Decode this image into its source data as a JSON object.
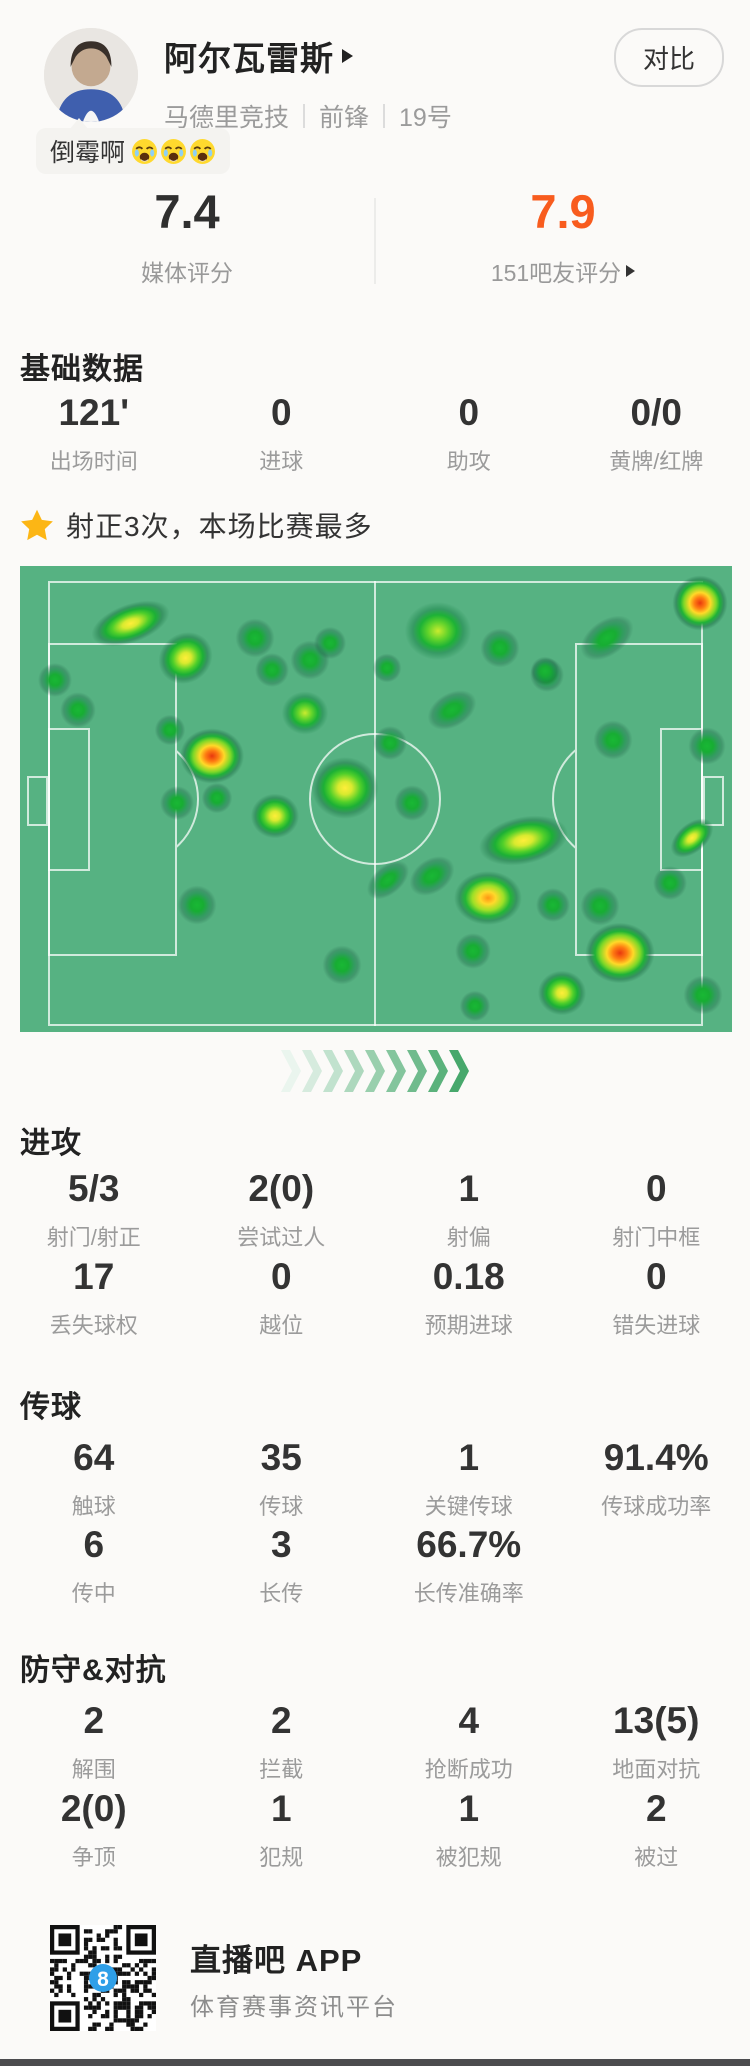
{
  "header": {
    "player_name": "阿尔瓦雷斯",
    "team": "马德里竞技",
    "position": "前锋",
    "number": "19号",
    "compare_label": "对比",
    "tag_text": "倒霉啊",
    "tag_emoji": "crying-face",
    "tag_emoji_count": 3
  },
  "ratings": {
    "media_score": "7.4",
    "media_label": "媒体评分",
    "fan_score": "7.9",
    "fan_label": "151吧友评分",
    "fan_color": "#f85c1e"
  },
  "highlight": {
    "text": "射正3次，本场比赛最多",
    "star_color": "#fcb615"
  },
  "sections": [
    {
      "key": "basic",
      "title": "基础数据",
      "rows": [
        [
          {
            "v": "121'",
            "l": "出场时间"
          },
          {
            "v": "0",
            "l": "进球"
          },
          {
            "v": "0",
            "l": "助攻"
          },
          {
            "v": "0/0",
            "l": "黄牌/红牌"
          }
        ]
      ]
    },
    {
      "key": "attack",
      "title": "进攻",
      "rows": [
        [
          {
            "v": "5/3",
            "l": "射门/射正"
          },
          {
            "v": "2(0)",
            "l": "尝试过人"
          },
          {
            "v": "1",
            "l": "射偏"
          },
          {
            "v": "0",
            "l": "射门中框"
          }
        ],
        [
          {
            "v": "17",
            "l": "丢失球权"
          },
          {
            "v": "0",
            "l": "越位"
          },
          {
            "v": "0.18",
            "l": "预期进球"
          },
          {
            "v": "0",
            "l": "错失进球"
          }
        ]
      ]
    },
    {
      "key": "passing",
      "title": "传球",
      "rows": [
        [
          {
            "v": "64",
            "l": "触球"
          },
          {
            "v": "35",
            "l": "传球"
          },
          {
            "v": "1",
            "l": "关键传球"
          },
          {
            "v": "91.4%",
            "l": "传球成功率"
          }
        ],
        [
          {
            "v": "6",
            "l": "传中"
          },
          {
            "v": "3",
            "l": "长传"
          },
          {
            "v": "66.7%",
            "l": "长传准确率"
          }
        ]
      ]
    },
    {
      "key": "defense",
      "title": "防守&对抗",
      "rows": [
        [
          {
            "v": "2",
            "l": "解围"
          },
          {
            "v": "2",
            "l": "拦截"
          },
          {
            "v": "4",
            "l": "抢断成功"
          },
          {
            "v": "13(5)",
            "l": "地面对抗"
          }
        ],
        [
          {
            "v": "2(0)",
            "l": "争顶"
          },
          {
            "v": "1",
            "l": "犯规"
          },
          {
            "v": "1",
            "l": "被犯规"
          },
          {
            "v": "2",
            "l": "被过"
          }
        ]
      ]
    }
  ],
  "heatmap": {
    "pitch_color": "#56b282",
    "line_color": "rgba(255,255,255,0.72)",
    "blobs": [
      [
        110,
        57,
        95,
        45,
        -20,
        "y"
      ],
      [
        35,
        114,
        40,
        40,
        0,
        "g"
      ],
      [
        58,
        144,
        42,
        42,
        0,
        "g"
      ],
      [
        165,
        92,
        65,
        58,
        -35,
        "y"
      ],
      [
        235,
        72,
        46,
        46,
        0,
        "g"
      ],
      [
        252,
        104,
        40,
        40,
        0,
        "g"
      ],
      [
        290,
        94,
        46,
        46,
        0,
        "g"
      ],
      [
        310,
        77,
        38,
        38,
        0,
        "g"
      ],
      [
        285,
        147,
        56,
        52,
        0,
        "gy"
      ],
      [
        150,
        164,
        36,
        36,
        0,
        "g"
      ],
      [
        192,
        190,
        72,
        62,
        0,
        "r"
      ],
      [
        255,
        250,
        56,
        52,
        0,
        "y"
      ],
      [
        325,
        222,
        78,
        72,
        0,
        "y"
      ],
      [
        370,
        177,
        40,
        40,
        0,
        "g"
      ],
      [
        392,
        237,
        42,
        42,
        0,
        "g"
      ],
      [
        418,
        65,
        80,
        70,
        0,
        "gy"
      ],
      [
        367,
        102,
        34,
        34,
        0,
        "g"
      ],
      [
        480,
        82,
        46,
        46,
        0,
        "g"
      ],
      [
        527,
        109,
        40,
        40,
        0,
        "g"
      ],
      [
        587,
        72,
        70,
        42,
        -35,
        "g"
      ],
      [
        593,
        174,
        46,
        46,
        0,
        "g"
      ],
      [
        687,
        180,
        44,
        44,
        0,
        "g"
      ],
      [
        680,
        37,
        62,
        62,
        0,
        "r"
      ],
      [
        432,
        144,
        62,
        40,
        -30,
        "g"
      ],
      [
        525,
        105,
        34,
        34,
        0,
        "g"
      ],
      [
        157,
        237,
        40,
        40,
        0,
        "g"
      ],
      [
        197,
        232,
        36,
        36,
        0,
        "g"
      ],
      [
        177,
        339,
        46,
        46,
        0,
        "g"
      ],
      [
        322,
        399,
        46,
        46,
        0,
        "g"
      ],
      [
        368,
        314,
        58,
        34,
        -40,
        "g"
      ],
      [
        412,
        310,
        58,
        40,
        -35,
        "g"
      ],
      [
        503,
        274,
        105,
        55,
        -12,
        "y"
      ],
      [
        468,
        332,
        78,
        62,
        0,
        "o"
      ],
      [
        533,
        339,
        40,
        40,
        0,
        "g"
      ],
      [
        580,
        340,
        46,
        46,
        0,
        "g"
      ],
      [
        453,
        385,
        42,
        42,
        0,
        "g"
      ],
      [
        600,
        387,
        78,
        68,
        0,
        "r"
      ],
      [
        542,
        427,
        56,
        52,
        0,
        "y"
      ],
      [
        672,
        272,
        58,
        34,
        -40,
        "y"
      ],
      [
        650,
        317,
        40,
        40,
        0,
        "g"
      ],
      [
        683,
        429,
        46,
        46,
        0,
        "g"
      ],
      [
        455,
        440,
        36,
        36,
        0,
        "g"
      ]
    ]
  },
  "chevrons": {
    "count": 9,
    "start_color": "#eaf5ee",
    "end_color": "#47a86c"
  },
  "footer": {
    "app_name": "直播吧 APP",
    "slogan": "体育赛事资讯平台",
    "qr_logo": "8"
  }
}
